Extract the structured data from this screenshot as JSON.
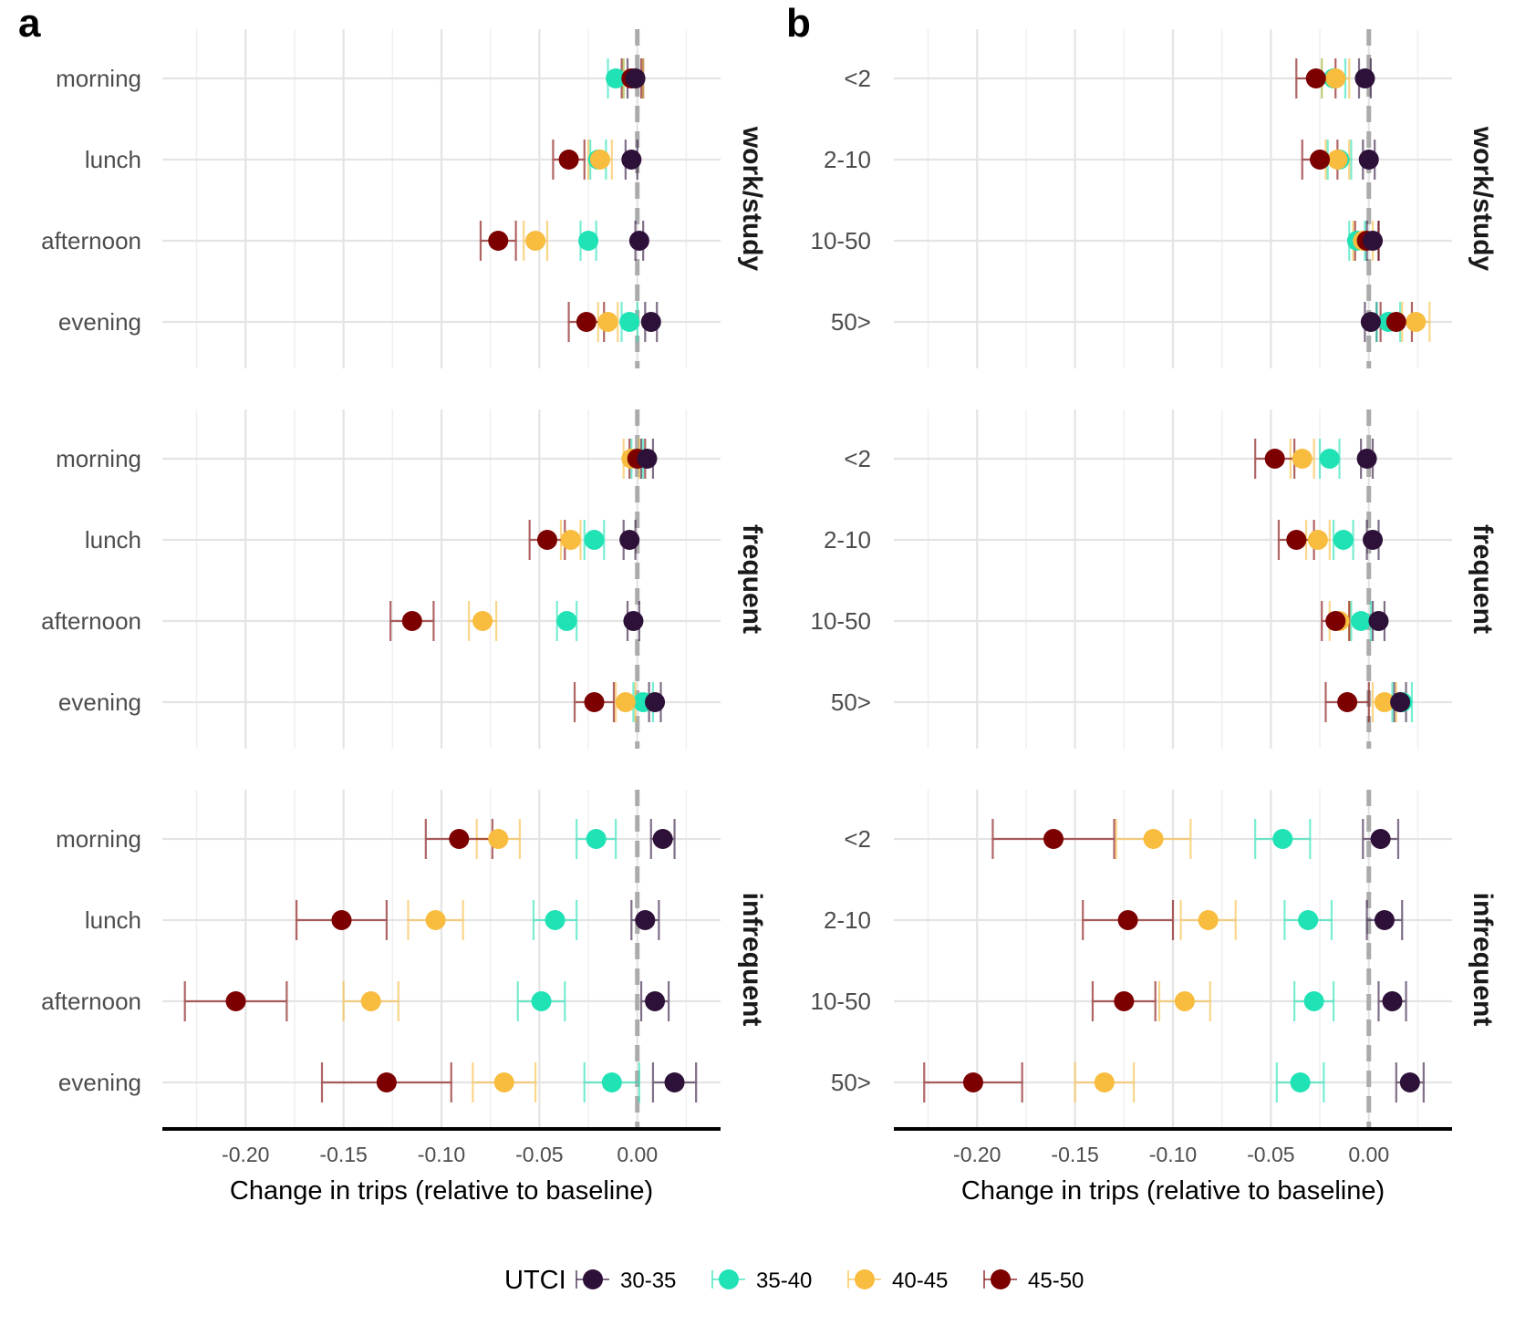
{
  "chart_data": [
    {
      "type": "scatter",
      "panel_label": "a",
      "xlabel": "Change in trips (relative to baseline)",
      "xlim": [
        -0.2425,
        0.0425
      ],
      "x_ticks": [
        -0.2,
        -0.15,
        -0.1,
        -0.05,
        0.0
      ],
      "x_tick_labels": [
        "-0.20",
        "-0.15",
        "-0.10",
        "-0.05",
        "0.00"
      ],
      "reference_line": 0,
      "facets": [
        {
          "label": "work/study",
          "categories": [
            "morning",
            "lunch",
            "afternoon",
            "evening"
          ],
          "series": [
            {
              "name": "30-35",
              "values": [
                -0.001,
                -0.003,
                0.001,
                0.007
              ],
              "lower": [
                -0.005,
                -0.006,
                -0.001,
                0.004
              ],
              "upper": [
                0.003,
                0.0,
                0.003,
                0.01
              ]
            },
            {
              "name": "35-40",
              "values": [
                -0.011,
                -0.02,
                -0.025,
                -0.004
              ],
              "lower": [
                -0.015,
                -0.024,
                -0.029,
                -0.008
              ],
              "upper": [
                -0.007,
                -0.016,
                -0.021,
                0.0
              ]
            },
            {
              "name": "40-45",
              "values": [
                -0.002,
                -0.019,
                -0.052,
                -0.015
              ],
              "lower": [
                -0.007,
                -0.025,
                -0.058,
                -0.02
              ],
              "upper": [
                0.003,
                -0.013,
                -0.046,
                -0.01
              ]
            },
            {
              "name": "45-50",
              "values": [
                -0.003,
                -0.035,
                -0.071,
                -0.026
              ],
              "lower": [
                -0.008,
                -0.043,
                -0.08,
                -0.035
              ],
              "upper": [
                0.002,
                -0.027,
                -0.062,
                -0.017
              ]
            }
          ]
        },
        {
          "label": "frequent",
          "categories": [
            "morning",
            "lunch",
            "afternoon",
            "evening"
          ],
          "series": [
            {
              "name": "30-35",
              "values": [
                0.005,
                -0.004,
                -0.002,
                0.009
              ],
              "lower": [
                0.002,
                -0.007,
                -0.005,
                0.006
              ],
              "upper": [
                0.008,
                -0.001,
                0.001,
                0.012
              ]
            },
            {
              "name": "35-40",
              "values": [
                0.0,
                -0.022,
                -0.036,
                0.003
              ],
              "lower": [
                -0.003,
                -0.027,
                -0.041,
                -0.002
              ],
              "upper": [
                0.003,
                -0.017,
                -0.031,
                0.008
              ]
            },
            {
              "name": "40-45",
              "values": [
                -0.003,
                -0.034,
                -0.079,
                -0.006
              ],
              "lower": [
                -0.007,
                -0.039,
                -0.086,
                -0.011
              ],
              "upper": [
                0.001,
                -0.029,
                -0.072,
                -0.001
              ]
            },
            {
              "name": "45-50",
              "values": [
                0.0,
                -0.046,
                -0.115,
                -0.022
              ],
              "lower": [
                -0.004,
                -0.055,
                -0.126,
                -0.032
              ],
              "upper": [
                0.004,
                -0.037,
                -0.104,
                -0.012
              ]
            }
          ]
        },
        {
          "label": "infrequent",
          "categories": [
            "morning",
            "lunch",
            "afternoon",
            "evening"
          ],
          "series": [
            {
              "name": "30-35",
              "values": [
                0.013,
                0.004,
                0.009,
                0.019
              ],
              "lower": [
                0.007,
                -0.003,
                0.002,
                0.008
              ],
              "upper": [
                0.019,
                0.011,
                0.016,
                0.03
              ]
            },
            {
              "name": "35-40",
              "values": [
                -0.021,
                -0.042,
                -0.049,
                -0.013
              ],
              "lower": [
                -0.031,
                -0.053,
                -0.061,
                -0.027
              ],
              "upper": [
                -0.011,
                -0.031,
                -0.037,
                0.001
              ]
            },
            {
              "name": "40-45",
              "values": [
                -0.071,
                -0.103,
                -0.136,
                -0.068
              ],
              "lower": [
                -0.082,
                -0.117,
                -0.15,
                -0.084
              ],
              "upper": [
                -0.06,
                -0.089,
                -0.122,
                -0.052
              ]
            },
            {
              "name": "45-50",
              "values": [
                -0.091,
                -0.151,
                -0.205,
                -0.128
              ],
              "lower": [
                -0.108,
                -0.174,
                -0.231,
                -0.161
              ],
              "upper": [
                -0.074,
                -0.128,
                -0.179,
                -0.095
              ]
            }
          ]
        }
      ]
    },
    {
      "type": "scatter",
      "panel_label": "b",
      "xlabel": "Change in trips (relative to baseline)",
      "xlim": [
        -0.2425,
        0.0425
      ],
      "x_ticks": [
        -0.2,
        -0.15,
        -0.1,
        -0.05,
        0.0
      ],
      "x_tick_labels": [
        "-0.20",
        "-0.15",
        "-0.10",
        "-0.05",
        "0.00"
      ],
      "reference_line": 0,
      "facets": [
        {
          "label": "work/study",
          "categories": [
            "<2",
            "2-10",
            "10-50",
            "50>"
          ],
          "series": [
            {
              "name": "30-35",
              "values": [
                -0.002,
                0.0,
                0.002,
                0.001
              ],
              "lower": [
                -0.005,
                -0.003,
                -0.001,
                -0.002
              ],
              "upper": [
                0.001,
                0.003,
                0.005,
                0.004
              ]
            },
            {
              "name": "35-40",
              "values": [
                -0.018,
                -0.015,
                -0.006,
                0.01
              ],
              "lower": [
                -0.024,
                -0.021,
                -0.01,
                0.004
              ],
              "upper": [
                -0.012,
                -0.009,
                -0.002,
                0.016
              ]
            },
            {
              "name": "40-45",
              "values": [
                -0.017,
                -0.016,
                -0.003,
                0.024
              ],
              "lower": [
                -0.024,
                -0.022,
                -0.008,
                0.017
              ],
              "upper": [
                -0.01,
                -0.01,
                0.002,
                0.031
              ]
            },
            {
              "name": "45-50",
              "values": [
                -0.027,
                -0.025,
                -0.001,
                0.014
              ],
              "lower": [
                -0.037,
                -0.034,
                -0.007,
                0.006
              ],
              "upper": [
                -0.017,
                -0.016,
                0.005,
                0.022
              ]
            }
          ]
        },
        {
          "label": "frequent",
          "categories": [
            "<2",
            "2-10",
            "10-50",
            "50>"
          ],
          "series": [
            {
              "name": "30-35",
              "values": [
                -0.001,
                0.002,
                0.005,
                0.016
              ],
              "lower": [
                -0.004,
                -0.001,
                0.002,
                0.013
              ],
              "upper": [
                0.002,
                0.005,
                0.008,
                0.019
              ]
            },
            {
              "name": "35-40",
              "values": [
                -0.02,
                -0.013,
                -0.004,
                0.017
              ],
              "lower": [
                -0.025,
                -0.018,
                -0.009,
                0.012
              ],
              "upper": [
                -0.015,
                -0.008,
                0.001,
                0.022
              ]
            },
            {
              "name": "40-45",
              "values": [
                -0.034,
                -0.026,
                -0.015,
                0.008
              ],
              "lower": [
                -0.04,
                -0.032,
                -0.02,
                0.002
              ],
              "upper": [
                -0.028,
                -0.02,
                -0.01,
                0.014
              ]
            },
            {
              "name": "45-50",
              "values": [
                -0.048,
                -0.037,
                -0.017,
                -0.011
              ],
              "lower": [
                -0.058,
                -0.046,
                -0.024,
                -0.022
              ],
              "upper": [
                -0.038,
                -0.028,
                -0.01,
                0.0
              ]
            }
          ]
        },
        {
          "label": "infrequent",
          "categories": [
            "<2",
            "2-10",
            "10-50",
            "50>"
          ],
          "series": [
            {
              "name": "30-35",
              "values": [
                0.006,
                0.008,
                0.012,
                0.021
              ],
              "lower": [
                -0.003,
                -0.001,
                0.005,
                0.014
              ],
              "upper": [
                0.015,
                0.017,
                0.019,
                0.028
              ]
            },
            {
              "name": "35-40",
              "values": [
                -0.044,
                -0.031,
                -0.028,
                -0.035
              ],
              "lower": [
                -0.058,
                -0.043,
                -0.038,
                -0.047
              ],
              "upper": [
                -0.03,
                -0.019,
                -0.018,
                -0.023
              ]
            },
            {
              "name": "40-45",
              "values": [
                -0.11,
                -0.082,
                -0.094,
                -0.135
              ],
              "lower": [
                -0.129,
                -0.096,
                -0.107,
                -0.15
              ],
              "upper": [
                -0.091,
                -0.068,
                -0.081,
                -0.12
              ]
            },
            {
              "name": "45-50",
              "values": [
                -0.161,
                -0.123,
                -0.125,
                -0.202
              ],
              "lower": [
                -0.192,
                -0.146,
                -0.141,
                -0.227
              ],
              "upper": [
                -0.13,
                -0.1,
                -0.109,
                -0.177
              ]
            }
          ]
        }
      ]
    }
  ],
  "legend": {
    "title": "UTCI",
    "entries": [
      "30-35",
      "35-40",
      "40-45",
      "45-50"
    ],
    "colors": [
      "#2d1139",
      "#1fe2b5",
      "#f8bc3e",
      "#7d0000"
    ],
    "placement": "bottom-center"
  }
}
